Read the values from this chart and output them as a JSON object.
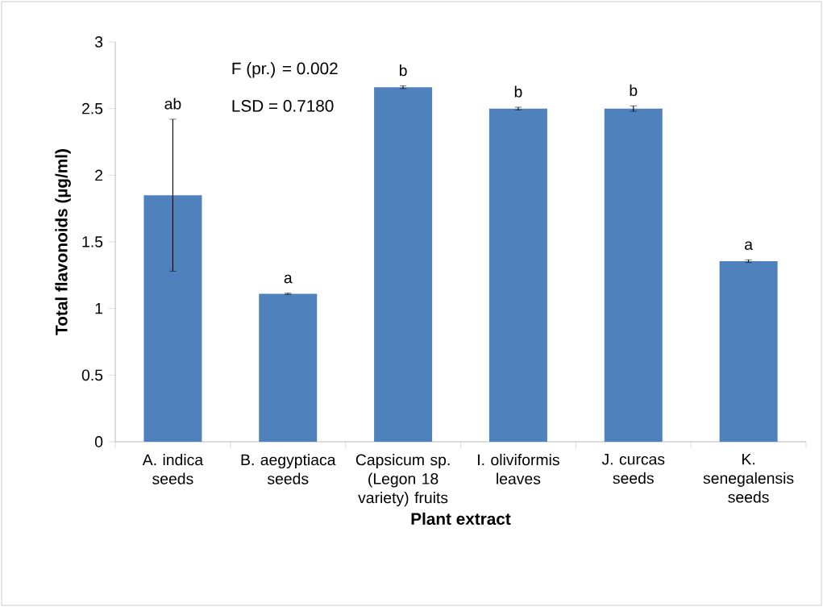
{
  "chart_data": {
    "type": "bar",
    "xlabel": "Plant extract",
    "ylabel": "**Total flavonoids (µg/ml)**",
    "categories": [
      "A. indica seeds",
      "B. aegyptiaca seeds",
      "Capsicum sp. (Legon 18 variety) fruits",
      "I. oliviformis leaves",
      "J. curcas seeds",
      "K. senegalensis seeds"
    ],
    "values": [
      1.85,
      1.11,
      2.66,
      2.5,
      2.5,
      1.355
    ],
    "errors": [
      0.57,
      0.005,
      0.01,
      0.01,
      0.02,
      0.01
    ],
    "color": "#4f81bd",
    "ylim": [
      0,
      3
    ],
    "yticks": [
      0,
      0.5,
      1,
      1.5,
      2,
      2.5,
      3
    ],
    "grid": false,
    "annotations": [
      "F (pr.) = 0.002",
      "LSD = 0.7180",
      {
        "text": "ab",
        "x": "A. indica seeds",
        "y": 2.42
      },
      {
        "text": "a",
        "x": "B. aegyptiaca seeds",
        "y": 1.115
      },
      {
        "text": "b",
        "x": "Capsicum sp. (Legon 18 variety) fruits",
        "y": 2.67
      },
      {
        "text": "b",
        "x": "I. oliviformis leaves",
        "y": 2.51
      },
      {
        "text": "b",
        "x": "J. curcas seeds",
        "y": 2.52
      },
      {
        "text": "a",
        "x": "K. senegalensis seeds",
        "y": 1.365
      }
    ]
  }
}
